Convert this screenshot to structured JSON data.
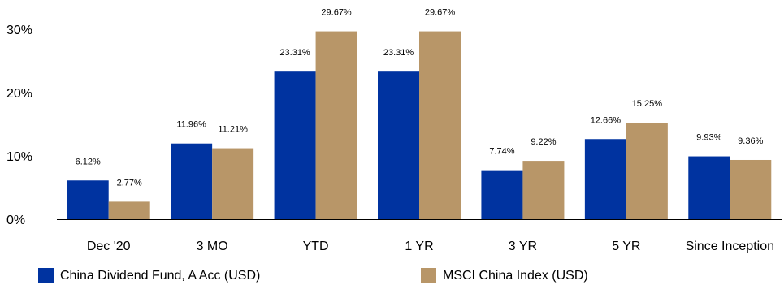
{
  "chart_data": {
    "type": "bar",
    "categories": [
      "Dec '20",
      "3 MO",
      "YTD",
      "1 YR",
      "3 YR",
      "5 YR",
      "Since Inception"
    ],
    "series": [
      {
        "name": "China Dividend Fund, A Acc (USD)",
        "color": "#0033a0",
        "values": [
          6.12,
          11.96,
          23.31,
          23.31,
          7.74,
          12.66,
          9.93
        ],
        "labels": [
          "6.12%",
          "11.96%",
          "23.31%",
          "23.31%",
          "7.74%",
          "12.66%",
          "9.93%"
        ]
      },
      {
        "name": "MSCI China Index (USD)",
        "color": "#b89668",
        "values": [
          2.77,
          11.21,
          29.67,
          29.67,
          9.22,
          15.25,
          9.36
        ],
        "labels": [
          "2.77%",
          "11.21%",
          "29.67%",
          "29.67%",
          "9.22%",
          "15.25%",
          "9.36%"
        ]
      }
    ],
    "yticks": [
      "0%",
      "10%",
      "20%",
      "30%"
    ],
    "ytick_values": [
      0,
      10,
      20,
      30
    ],
    "ylim": [
      0,
      30
    ],
    "grid": false,
    "legend_position": "bottom"
  }
}
